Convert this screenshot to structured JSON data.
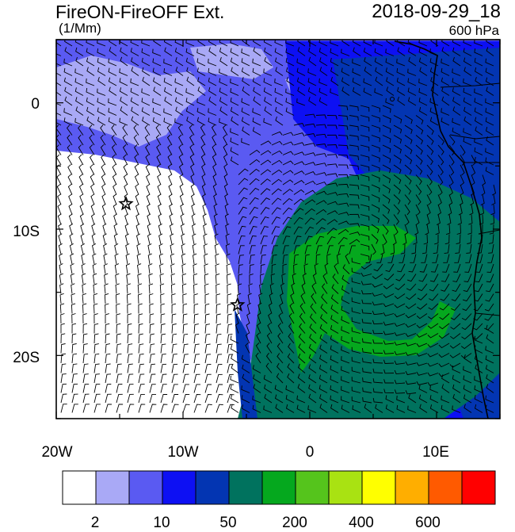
{
  "header": {
    "title": "FireON-FireOFF Ext.",
    "units": "(1/Mm)",
    "datetime": "2018-09-29_18",
    "level": "600 hPa"
  },
  "axes": {
    "y_ticks": [
      "0",
      "10S",
      "20S"
    ],
    "x_ticks": [
      "20W",
      "10W",
      "0",
      "10E"
    ]
  },
  "colorbar": {
    "colors": [
      "#ffffff",
      "#a9a9f6",
      "#5a5af2",
      "#0d10f3",
      "#0335b2",
      "#00725e",
      "#05a81e",
      "#55c41c",
      "#a9e212",
      "#ffff00",
      "#ffae00",
      "#ff5a00",
      "#ff0000"
    ],
    "labels": [
      "2",
      "10",
      "50",
      "200",
      "400",
      "600"
    ]
  },
  "markers": [
    {
      "name": "star-marker",
      "lon": -14.5,
      "lat": -8.0
    },
    {
      "name": "star-marker",
      "lon": -5.7,
      "lat": -16.0
    }
  ]
}
